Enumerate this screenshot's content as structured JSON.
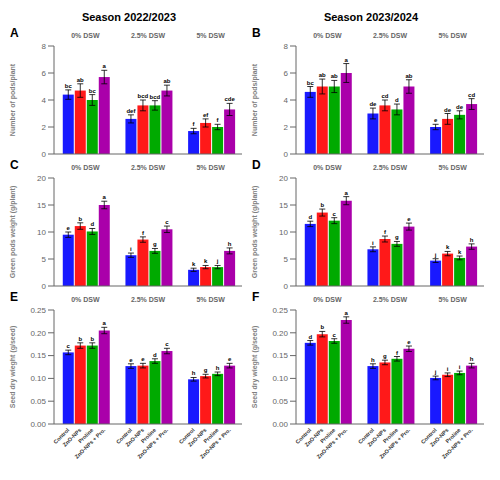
{
  "chart_data": [
    {
      "type": "bar",
      "title": "Season 2022/2023",
      "annotations": [
        "A"
      ],
      "ylabel": "Number of pods/plant",
      "categories": [
        "0% DSW",
        "2.5% DSW",
        "5% DSW"
      ],
      "ylim": [
        0,
        8
      ],
      "yticks": [
        0,
        2,
        4,
        6,
        8
      ],
      "grid": false,
      "series": [
        {
          "color": "#1919FF",
          "values": [
            4.4,
            2.6,
            1.7
          ],
          "errors": [
            0.35,
            0.3,
            0.2
          ],
          "value_labels": [
            "bc",
            "def",
            "f"
          ]
        },
        {
          "color": "#FF1919",
          "values": [
            4.7,
            3.6,
            2.3
          ],
          "errors": [
            0.5,
            0.4,
            0.3
          ],
          "value_labels": [
            "ab",
            "bcd",
            "ef"
          ]
        },
        {
          "color": "#00AA00",
          "values": [
            4.0,
            3.6,
            2.0
          ],
          "errors": [
            0.4,
            0.35,
            0.2
          ],
          "value_labels": [
            "bc",
            "bcd",
            "f"
          ]
        },
        {
          "color": "#AA00AA",
          "values": [
            5.7,
            4.7,
            3.3
          ],
          "errors": [
            0.5,
            0.4,
            0.45
          ],
          "value_labels": [
            "a",
            "ab",
            "cde"
          ]
        }
      ]
    },
    {
      "type": "bar",
      "title": "Season 2023/2024",
      "annotations": [
        "B"
      ],
      "ylabel": "Number of pods/plant",
      "categories": [
        "0% DSW",
        "2.5% DSW",
        "5% DSW"
      ],
      "ylim": [
        0,
        8
      ],
      "yticks": [
        0,
        2,
        4,
        6,
        8
      ],
      "grid": false,
      "series": [
        {
          "color": "#1919FF",
          "values": [
            4.6,
            3.0,
            2.0
          ],
          "errors": [
            0.4,
            0.4,
            0.2
          ],
          "value_labels": [
            "bc",
            "de",
            "e"
          ]
        },
        {
          "color": "#FF1919",
          "values": [
            5.0,
            3.6,
            2.6
          ],
          "errors": [
            0.55,
            0.4,
            0.4
          ],
          "value_labels": [
            "ab",
            "cd",
            "de"
          ]
        },
        {
          "color": "#00AA00",
          "values": [
            5.0,
            3.3,
            2.9
          ],
          "errors": [
            0.45,
            0.4,
            0.3
          ],
          "value_labels": [
            "ab",
            "d",
            "de"
          ]
        },
        {
          "color": "#AA00AA",
          "values": [
            6.0,
            5.0,
            3.7
          ],
          "errors": [
            0.7,
            0.5,
            0.4
          ],
          "value_labels": [
            "a",
            "ab",
            "cd"
          ]
        }
      ]
    },
    {
      "type": "bar",
      "annotations": [
        "C"
      ],
      "ylabel": "Green pods weight (g/plant)",
      "categories": [
        "0% DSW",
        "2.5% DSW",
        "5% DSW"
      ],
      "ylim": [
        0,
        20
      ],
      "yticks": [
        0,
        5,
        10,
        15,
        20
      ],
      "grid": false,
      "series": [
        {
          "color": "#1919FF",
          "values": [
            9.5,
            5.7,
            3.0
          ],
          "errors": [
            0.5,
            0.4,
            0.3
          ],
          "value_labels": [
            "e",
            "i",
            "k"
          ]
        },
        {
          "color": "#FF1919",
          "values": [
            11.1,
            8.6,
            3.5
          ],
          "errors": [
            0.6,
            0.5,
            0.3
          ],
          "value_labels": [
            "b",
            "f",
            "k"
          ]
        },
        {
          "color": "#00AA00",
          "values": [
            10.1,
            6.5,
            3.5
          ],
          "errors": [
            0.55,
            0.45,
            0.3
          ],
          "value_labels": [
            "d",
            "g",
            "j"
          ]
        },
        {
          "color": "#AA00AA",
          "values": [
            15.0,
            10.5,
            6.5
          ],
          "errors": [
            0.7,
            0.6,
            0.55
          ],
          "value_labels": [
            "a",
            "c",
            "h"
          ]
        }
      ]
    },
    {
      "type": "bar",
      "annotations": [
        "D"
      ],
      "ylabel": "Green pods weight (g/plant)",
      "categories": [
        "0% DSW",
        "2.5% DSW",
        "5% DSW"
      ],
      "ylim": [
        0,
        20
      ],
      "yticks": [
        0,
        5,
        10,
        15,
        20
      ],
      "grid": false,
      "series": [
        {
          "color": "#1919FF",
          "values": [
            11.5,
            6.8,
            4.7
          ],
          "errors": [
            0.5,
            0.45,
            0.35
          ],
          "value_labels": [
            "d",
            "i",
            "j"
          ]
        },
        {
          "color": "#FF1919",
          "values": [
            13.6,
            8.7,
            6.0
          ],
          "errors": [
            0.65,
            0.55,
            0.4
          ],
          "value_labels": [
            "b",
            "f",
            "k"
          ]
        },
        {
          "color": "#00AA00",
          "values": [
            12.1,
            7.8,
            5.2
          ],
          "errors": [
            0.55,
            0.45,
            0.35
          ],
          "value_labels": [
            "c",
            "g",
            "k"
          ]
        },
        {
          "color": "#AA00AA",
          "values": [
            15.8,
            11.0,
            7.3
          ],
          "errors": [
            0.75,
            0.65,
            0.5
          ],
          "value_labels": [
            "a",
            "e",
            "h"
          ]
        }
      ]
    },
    {
      "type": "bar",
      "annotations": [
        "E"
      ],
      "ylabel": "Seed dry wieght (g/seed)",
      "categories": [
        "0% DSW",
        "2.5% DSW",
        "5% DSW"
      ],
      "ylim": [
        0,
        0.25
      ],
      "yticks": [
        {
          "value": 0,
          "label": "0.00"
        },
        0.05,
        {
          "value": 0.1,
          "label": "0.10"
        },
        0.15,
        {
          "value": 0.2,
          "label": "0.20"
        },
        0.25
      ],
      "grid": false,
      "series": [
        {
          "name": "Control",
          "color": "#1919FF",
          "values": [
            0.157,
            0.127,
            0.098
          ],
          "errors": [
            0.005,
            0.005,
            0.004
          ],
          "value_labels": [
            "c",
            "e",
            "h"
          ]
        },
        {
          "name": "ZnO-NPs",
          "color": "#FF1919",
          "values": [
            0.172,
            0.128,
            0.105
          ],
          "errors": [
            0.006,
            0.005,
            0.004
          ],
          "value_labels": [
            "b",
            "e",
            "g"
          ]
        },
        {
          "name": "Proline",
          "color": "#00AA00",
          "values": [
            0.172,
            0.138,
            0.11
          ],
          "errors": [
            0.006,
            0.005,
            0.004
          ],
          "value_labels": [
            "b",
            "d",
            "h"
          ]
        },
        {
          "name": "ZnO-NPs + Pro.",
          "color": "#AA00AA",
          "values": [
            0.205,
            0.16,
            0.128
          ],
          "errors": [
            0.007,
            0.006,
            0.005
          ],
          "value_labels": [
            "a",
            "c",
            "e"
          ]
        }
      ]
    },
    {
      "type": "bar",
      "annotations": [
        "F"
      ],
      "ylabel": "Seed dry wieght (g/seed)",
      "categories": [
        "0% DSW",
        "2.5% DSW",
        "5% DSW"
      ],
      "ylim": [
        0,
        0.25
      ],
      "yticks": [
        {
          "value": 0,
          "label": "0.00"
        },
        0.05,
        {
          "value": 0.1,
          "label": "0.10"
        },
        0.15,
        {
          "value": 0.2,
          "label": "0.20"
        },
        0.25
      ],
      "grid": false,
      "series": [
        {
          "name": "Control",
          "color": "#1919FF",
          "values": [
            0.178,
            0.127,
            0.101
          ],
          "errors": [
            0.005,
            0.005,
            0.004
          ],
          "value_labels": [
            "d",
            "h",
            "j"
          ]
        },
        {
          "name": "ZnO-NPs",
          "color": "#FF1919",
          "values": [
            0.197,
            0.135,
            0.108
          ],
          "errors": [
            0.006,
            0.005,
            0.004
          ],
          "value_labels": [
            "b",
            "g",
            "i"
          ]
        },
        {
          "name": "Proline",
          "color": "#00AA00",
          "values": [
            0.182,
            0.143,
            0.112
          ],
          "errors": [
            0.005,
            0.005,
            0.004
          ],
          "value_labels": [
            "c",
            "f",
            "i"
          ]
        },
        {
          "name": "ZnO-NPs + Pro.",
          "color": "#AA00AA",
          "values": [
            0.228,
            0.165,
            0.128
          ],
          "errors": [
            0.007,
            0.006,
            0.005
          ],
          "value_labels": [
            "a",
            "e",
            "h"
          ]
        }
      ]
    }
  ]
}
